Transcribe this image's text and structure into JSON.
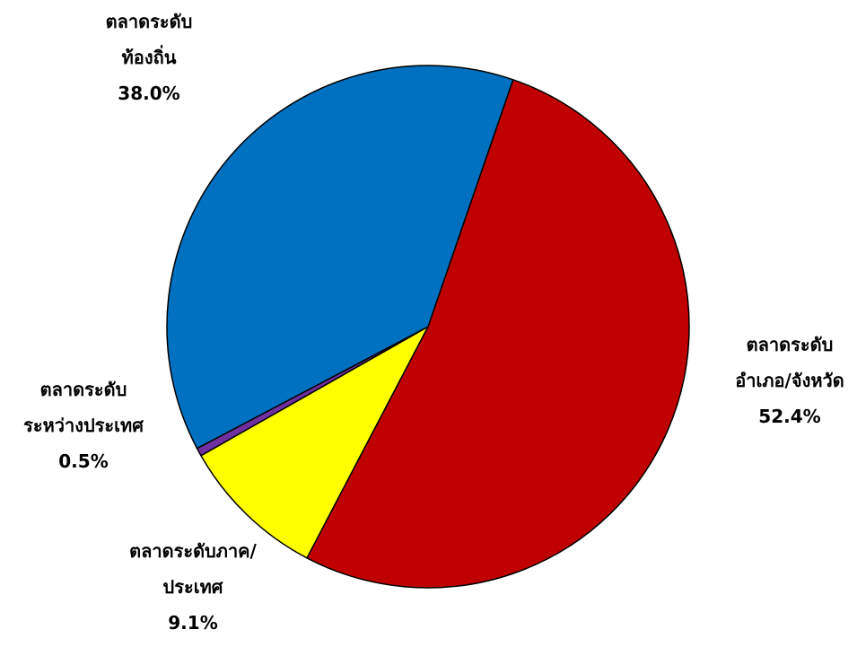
{
  "chart_data": {
    "type": "pie",
    "title": "",
    "slices": [
      {
        "lines": [
          "ตลาดระดับ",
          "อำเภอ/จังหวัด"
        ],
        "percent_label": "52.4%",
        "value": 52.4,
        "color": "#c00000"
      },
      {
        "lines": [
          "ตลาดระดับภาค/",
          "ประเทศ"
        ],
        "percent_label": "9.1%",
        "value": 9.1,
        "color": "#ffff00"
      },
      {
        "lines": [
          "ตลาดระดับ",
          "ระหว่างประเทศ"
        ],
        "percent_label": "0.5%",
        "value": 0.5,
        "color": "#7030a0"
      },
      {
        "lines": [
          "ตลาดระดับ",
          "ท้องถิ่น"
        ],
        "percent_label": "38.0%",
        "value": 38.0,
        "color": "#0070c0"
      }
    ]
  }
}
